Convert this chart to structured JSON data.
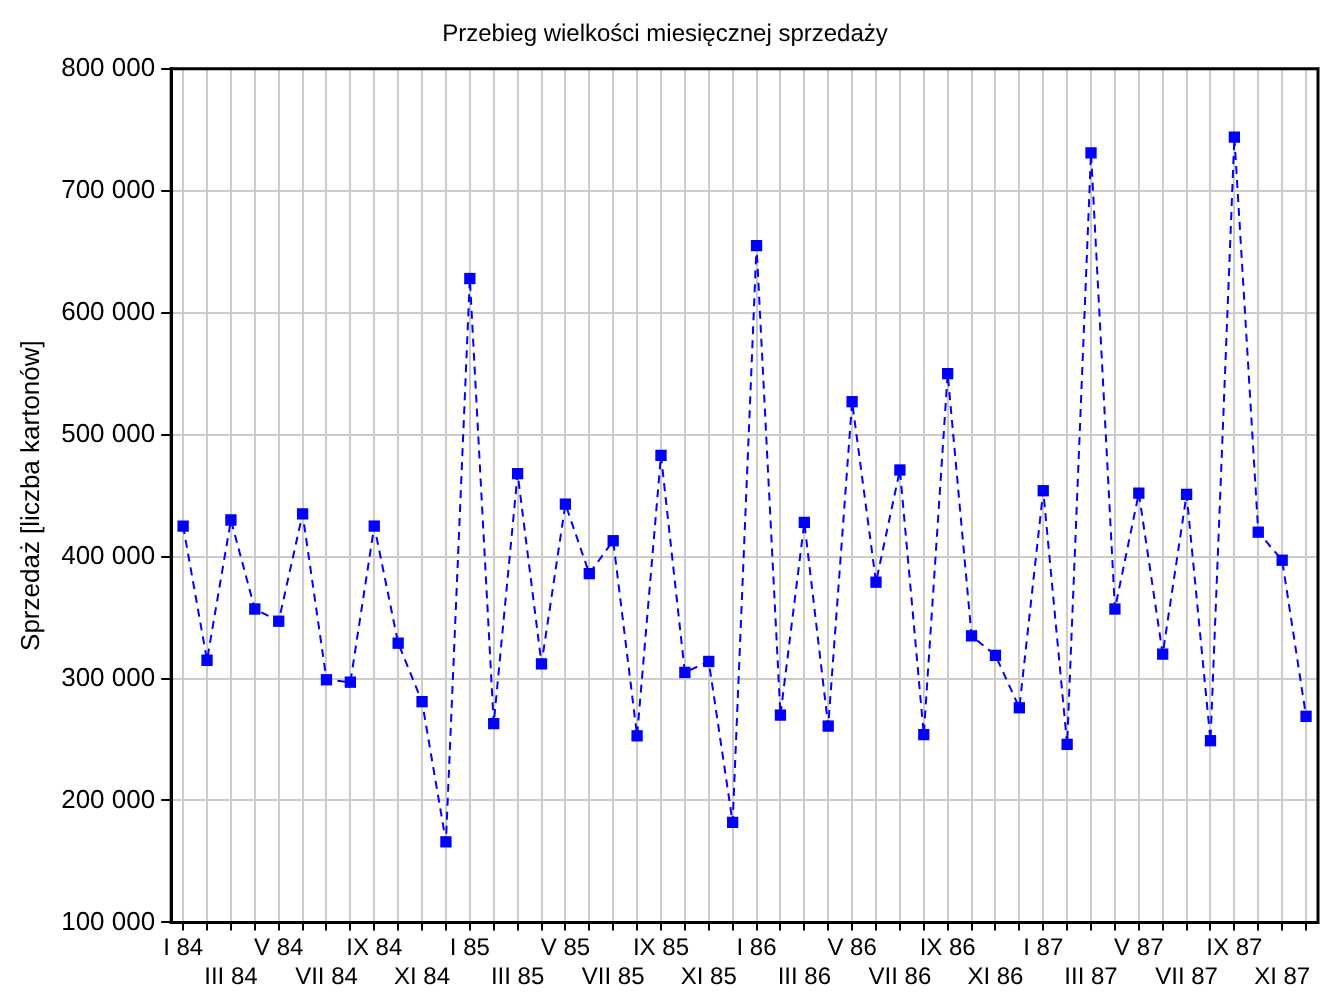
{
  "chart_data": {
    "type": "line",
    "title": "Przebieg wielkości miesięcznej sprzedaży",
    "ylabel": "Sprzedaż [liczba kartonów]",
    "categories": [
      "I 84",
      null,
      "III 84",
      null,
      "V 84",
      null,
      "VII 84",
      null,
      "IX 84",
      null,
      "XI 84",
      null,
      "I 85",
      null,
      "III 85",
      null,
      "V 85",
      null,
      "VII 85",
      null,
      "IX 85",
      null,
      "XI 85",
      null,
      "I 86",
      null,
      "III 86",
      null,
      "V 86",
      null,
      "VII 86",
      null,
      "IX 86",
      null,
      "XI 86",
      null,
      "I 87",
      null,
      "III 87",
      null,
      "V 87",
      null,
      "VII 87",
      null,
      "IX 87",
      null,
      "XI 87",
      null
    ],
    "series": [
      {
        "color": "#0000ff",
        "values": [
          425000,
          315000,
          430000,
          357000,
          347000,
          435000,
          299000,
          297000,
          425000,
          329000,
          281000,
          166000,
          628000,
          263000,
          468000,
          312000,
          443000,
          386000,
          413000,
          253000,
          483000,
          305000,
          314000,
          182000,
          655000,
          270000,
          428000,
          261000,
          527000,
          379000,
          471000,
          254000,
          550000,
          335000,
          319000,
          276000,
          454000,
          246000,
          731000,
          357000,
          452000,
          320000,
          451000,
          249000,
          744000,
          420000,
          397000,
          269000
        ]
      }
    ],
    "ylim": [
      100000,
      800000
    ],
    "yticks": [
      {
        "value": 100000,
        "label": "100 000"
      },
      {
        "value": 200000,
        "label": "200 000"
      },
      {
        "value": 300000,
        "label": "300 000"
      },
      {
        "value": 400000,
        "label": "400 000"
      },
      {
        "value": 500000,
        "label": "500 000"
      },
      {
        "value": 600000,
        "label": "600 000"
      },
      {
        "value": 700000,
        "label": "700 000"
      },
      {
        "value": 800000,
        "label": "800 000"
      }
    ],
    "grid": true,
    "legend": false,
    "marker": "square",
    "line_style": "dashed"
  }
}
